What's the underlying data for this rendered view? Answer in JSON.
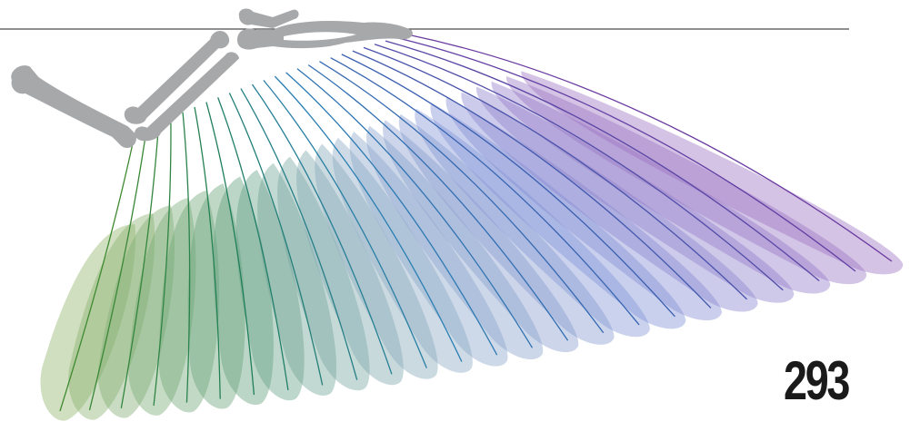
{
  "page_number": "293",
  "colors": {
    "bone": "#a7a8aa",
    "rule": "#222222",
    "feather_gradient": [
      "#8fb36a",
      "#5e9e7a",
      "#8aa9c4",
      "#7f8fd6",
      "#9a6fc0"
    ],
    "shaft_gradient": [
      "#3f8a30",
      "#1f7f5a",
      "#2a7fb3",
      "#3a5fb0",
      "#6a3aa0"
    ]
  },
  "feathers": {
    "count": 25
  }
}
